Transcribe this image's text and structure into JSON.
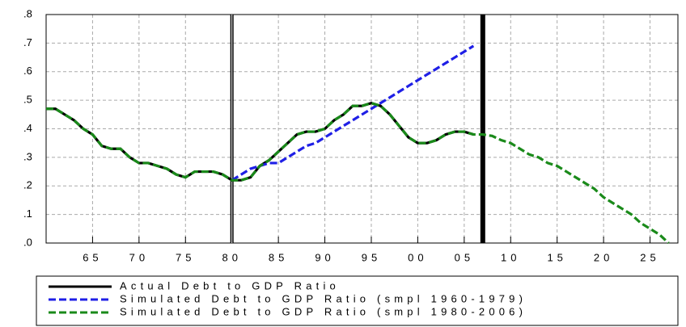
{
  "chart_data": {
    "type": "line",
    "x": [
      1960,
      1961,
      1962,
      1963,
      1964,
      1965,
      1966,
      1967,
      1968,
      1969,
      1970,
      1971,
      1972,
      1973,
      1974,
      1975,
      1976,
      1977,
      1978,
      1979,
      1980,
      1981,
      1982,
      1983,
      1984,
      1985,
      1986,
      1987,
      1988,
      1989,
      1990,
      1991,
      1992,
      1993,
      1994,
      1995,
      1996,
      1997,
      1998,
      1999,
      2000,
      2001,
      2002,
      2003,
      2004,
      2005,
      2006,
      2007,
      2008,
      2009,
      2010,
      2011,
      2012,
      2013,
      2014,
      2015,
      2016,
      2017,
      2018,
      2019,
      2020,
      2021,
      2022,
      2023,
      2024,
      2025,
      2026,
      2027
    ],
    "series": [
      {
        "name": "Actual Debt to GDP Ratio",
        "color": "#000000",
        "dashed": false,
        "values": [
          0.47,
          0.47,
          0.45,
          0.43,
          0.4,
          0.38,
          0.34,
          0.33,
          0.33,
          0.3,
          0.28,
          0.28,
          0.27,
          0.26,
          0.24,
          0.23,
          0.25,
          0.25,
          0.25,
          0.24,
          0.22,
          0.22,
          0.23,
          0.27,
          0.29,
          0.32,
          0.35,
          0.38,
          0.39,
          0.39,
          0.4,
          0.43,
          0.45,
          0.48,
          0.48,
          0.49,
          0.48,
          0.45,
          0.41,
          0.37,
          0.35,
          0.35,
          0.36,
          0.38,
          0.39,
          0.39,
          0.38,
          null,
          null,
          null,
          null,
          null,
          null,
          null,
          null,
          null,
          null,
          null,
          null,
          null,
          null,
          null,
          null,
          null,
          null,
          null,
          null,
          null
        ]
      },
      {
        "name": "Simulated Debt to GDP Ratio (smpl 1960-1979)",
        "color": "#1f1fe6",
        "dashed": true,
        "values": [
          null,
          null,
          null,
          null,
          null,
          null,
          null,
          null,
          null,
          null,
          null,
          null,
          null,
          null,
          null,
          null,
          null,
          null,
          null,
          null,
          0.22,
          0.24,
          0.26,
          0.27,
          0.28,
          0.28,
          0.3,
          0.32,
          0.34,
          0.35,
          0.37,
          0.39,
          0.41,
          0.43,
          0.45,
          0.47,
          0.49,
          0.51,
          0.53,
          0.55,
          0.57,
          0.59,
          0.61,
          0.63,
          0.65,
          0.67,
          0.69,
          null,
          null,
          null,
          null,
          null,
          null,
          null,
          null,
          null,
          null,
          null,
          null,
          null,
          null,
          null,
          null,
          null,
          null,
          null,
          null,
          null
        ]
      },
      {
        "name": "Simulated Debt to GDP Ratio (smpl 1980-2006)",
        "color": "#1a8a1a",
        "dashed": true,
        "values": [
          0.47,
          0.47,
          0.45,
          0.43,
          0.4,
          0.38,
          0.34,
          0.33,
          0.33,
          0.3,
          0.28,
          0.28,
          0.27,
          0.26,
          0.24,
          0.23,
          0.25,
          0.25,
          0.25,
          0.24,
          0.22,
          0.22,
          0.23,
          0.27,
          0.29,
          0.32,
          0.35,
          0.38,
          0.39,
          0.39,
          0.4,
          0.43,
          0.45,
          0.48,
          0.48,
          0.49,
          0.48,
          0.45,
          0.41,
          0.37,
          0.35,
          0.35,
          0.36,
          0.38,
          0.39,
          0.39,
          0.38,
          0.38,
          0.375,
          0.36,
          0.35,
          0.33,
          0.31,
          0.3,
          0.28,
          0.27,
          0.25,
          0.23,
          0.21,
          0.19,
          0.16,
          0.14,
          0.12,
          0.1,
          0.07,
          0.05,
          0.03,
          0.0
        ]
      }
    ],
    "xlim": [
      1960,
      2028
    ],
    "ylim": [
      0,
      0.8
    ],
    "xticks": [
      {
        "value": 1965,
        "label": "65"
      },
      {
        "value": 1970,
        "label": "70"
      },
      {
        "value": 1975,
        "label": "75"
      },
      {
        "value": 1980,
        "label": "80"
      },
      {
        "value": 1985,
        "label": "85"
      },
      {
        "value": 1990,
        "label": "90"
      },
      {
        "value": 1995,
        "label": "95"
      },
      {
        "value": 2000,
        "label": "00"
      },
      {
        "value": 2005,
        "label": "05"
      },
      {
        "value": 2010,
        "label": "10"
      },
      {
        "value": 2015,
        "label": "15"
      },
      {
        "value": 2020,
        "label": "20"
      },
      {
        "value": 2025,
        "label": "25"
      }
    ],
    "yticks": [
      {
        "value": 0,
        "label": ".0"
      },
      {
        "value": 0.1,
        "label": ".1"
      },
      {
        "value": 0.2,
        "label": ".2"
      },
      {
        "value": 0.3,
        "label": ".3"
      },
      {
        "value": 0.4,
        "label": ".4"
      },
      {
        "value": 0.5,
        "label": ".5"
      },
      {
        "value": 0.6,
        "label": ".6"
      },
      {
        "value": 0.7,
        "label": ".7"
      },
      {
        "value": 0.8,
        "label": ".8"
      }
    ],
    "vertical_lines": [
      1980,
      2007
    ],
    "grid": true
  }
}
